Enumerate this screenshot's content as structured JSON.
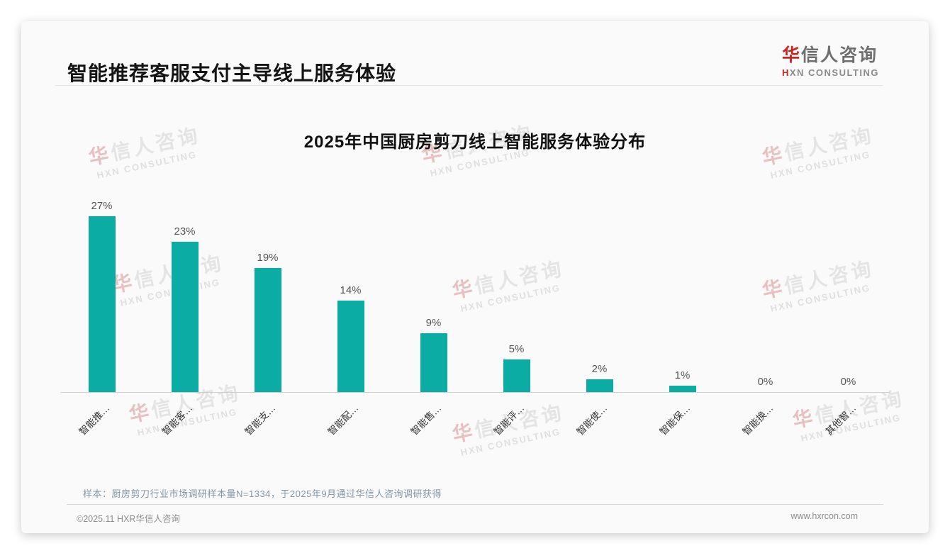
{
  "page": {
    "header_title": "智能推荐客服支付主导线上服务体验",
    "logo": {
      "cn_red": "华",
      "cn_rest": "信人咨询",
      "en_red": "H",
      "en_rest": "XN CONSULTING"
    },
    "watermark": {
      "cn_red": "华",
      "cn_rest": "信人咨询",
      "en": "HXN CONSULTING"
    },
    "source_note": "样本：厨房剪刀行业市场调研样本量N=1334，于2025年9月通过华信人咨询调研获得",
    "footer": {
      "copyright": "©2025.11 HXR华信人咨询",
      "website": "www.hxrcon.com"
    }
  },
  "chart_data": {
    "type": "bar",
    "title": "2025年中国厨房剪刀线上智能服务体验分布",
    "categories": [
      "智能推…",
      "智能客…",
      "智能支…",
      "智能配…",
      "智能售…",
      "智能评…",
      "智能使…",
      "智能保…",
      "智能换…",
      "其他智…"
    ],
    "values": [
      27,
      23,
      19,
      14,
      9,
      5,
      2,
      1,
      0,
      0
    ],
    "value_labels": [
      "27%",
      "23%",
      "19%",
      "14%",
      "9%",
      "5%",
      "2%",
      "1%",
      "0%",
      "0%"
    ],
    "unit": "percent",
    "bar_color": "#0baca4",
    "label_color": "#555555",
    "axis_color": "#cfcfcf",
    "ylim": [
      0,
      30
    ],
    "grid": false,
    "legend": "none",
    "x_label_rotation": -45
  }
}
